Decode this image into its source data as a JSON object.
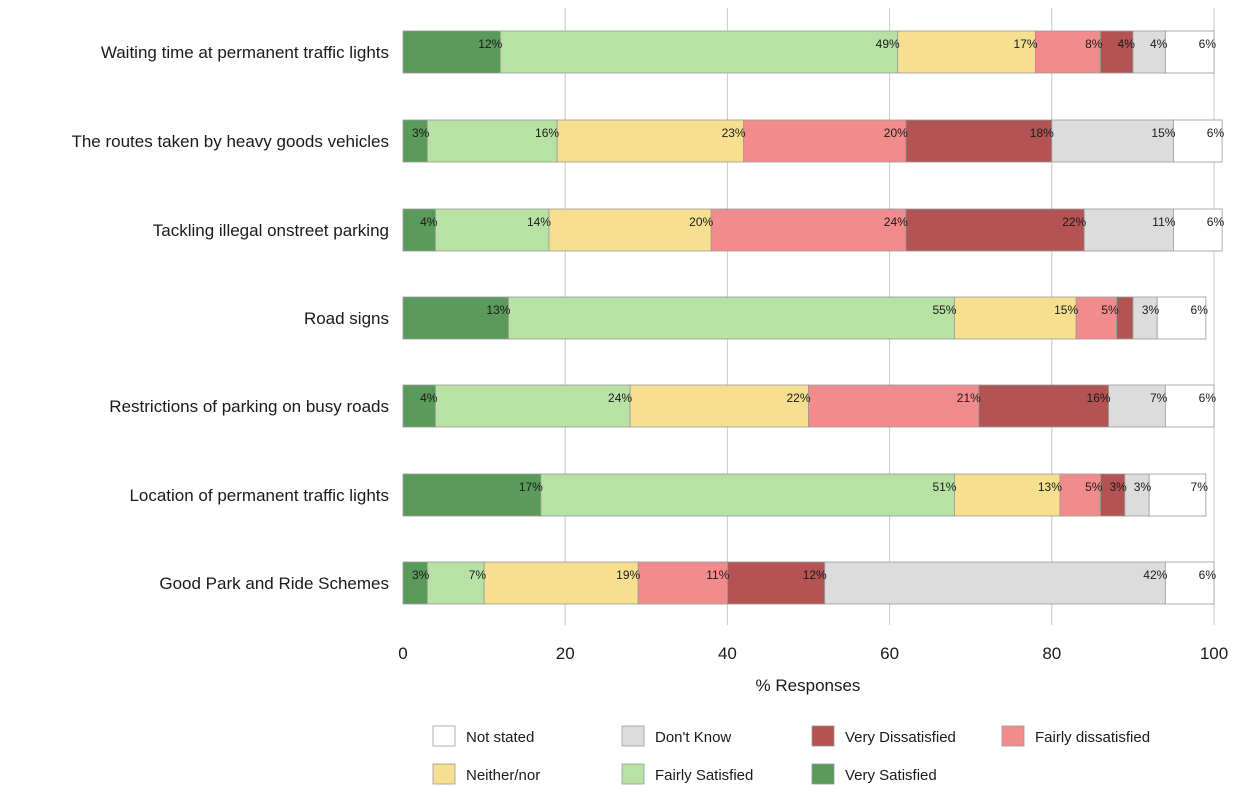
{
  "chart_data": {
    "type": "bar",
    "orientation": "horizontal",
    "stacked": true,
    "xlabel": "% Responses",
    "xlim": [
      0,
      100
    ],
    "xticks": [
      "0",
      "20",
      "40",
      "60",
      "80",
      "100"
    ],
    "grid": true,
    "legend_position": "bottom",
    "categories": [
      "Waiting time at permanent traffic lights",
      "The routes taken by heavy goods vehicles",
      "Tackling illegal onstreet parking",
      "Road signs",
      "Restrictions of parking on busy roads",
      "Location of permanent traffic lights",
      "Good Park and Ride Schemes"
    ],
    "series": [
      {
        "name": "Very Satisfied",
        "color": "#5a9a5a",
        "values": [
          12,
          3,
          4,
          13,
          4,
          17,
          3
        ],
        "labels": [
          "12%",
          "3%",
          "4%",
          "13%",
          "4%",
          "17%",
          "3%"
        ]
      },
      {
        "name": "Fairly Satisfied",
        "color": "#b8e2a4",
        "values": [
          49,
          16,
          14,
          55,
          24,
          51,
          7
        ],
        "labels": [
          "49%",
          "16%",
          "14%",
          "55%",
          "24%",
          "51%",
          "7%"
        ]
      },
      {
        "name": "Neither/nor",
        "color": "#f6df8e",
        "values": [
          17,
          23,
          20,
          15,
          22,
          13,
          19
        ],
        "labels": [
          "17%",
          "23%",
          "20%",
          "15%",
          "22%",
          "13%",
          "19%"
        ]
      },
      {
        "name": "Fairly dissatisfied",
        "color": "#f28b8b",
        "values": [
          8,
          20,
          24,
          5,
          21,
          5,
          11
        ],
        "labels": [
          "8%",
          "20%",
          "24%",
          "5%",
          "21%",
          "5%",
          "11%"
        ]
      },
      {
        "name": "Very Dissatisfied",
        "color": "#b35353",
        "values": [
          4,
          18,
          22,
          2,
          16,
          3,
          12
        ],
        "labels": [
          "4%",
          "18%",
          "22%",
          "",
          "16%",
          "3%",
          "12%"
        ]
      },
      {
        "name": "Don't Know",
        "color": "#dcdcdc",
        "values": [
          4,
          15,
          11,
          3,
          7,
          3,
          42
        ],
        "labels": [
          "4%",
          "15%",
          "11%",
          "3%",
          "7%",
          "3%",
          "42%"
        ]
      },
      {
        "name": "Not stated",
        "color": "#ffffff",
        "values": [
          6,
          6,
          6,
          6,
          6,
          7,
          6
        ],
        "labels": [
          "6%",
          "6%",
          "6%",
          "6%",
          "6%",
          "7%",
          "6%"
        ]
      }
    ],
    "legend": [
      [
        "Not stated",
        "Don't Know",
        "Very Dissatisfied",
        "Fairly dissatisfied"
      ],
      [
        "Neither/nor",
        "Fairly Satisfied",
        "Very Satisfied"
      ]
    ]
  }
}
